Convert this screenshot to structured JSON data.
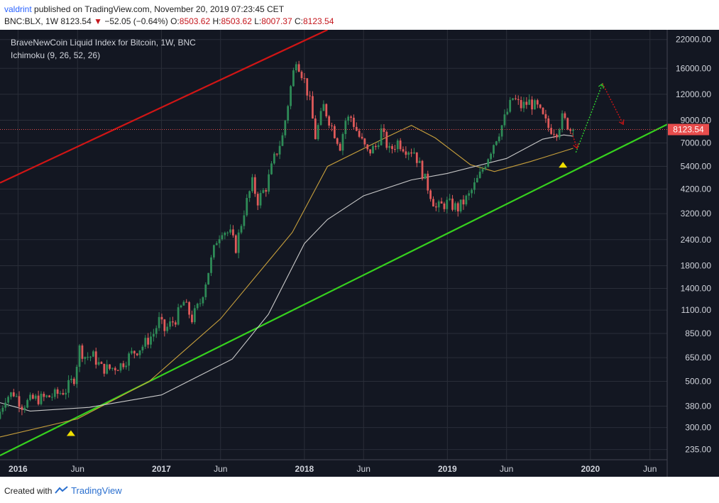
{
  "header": {
    "author": "valdrint",
    "published_text": " published on TradingView.com, November 20, 2019 07:23:45 CET",
    "symbol": "BNC:BLX, 1W",
    "last": "8123.54",
    "arrow": "▼",
    "change": "−52.05 (−0.64%)",
    "open_label": "O:",
    "open": "8503.62",
    "high_label": "H:",
    "high": "8503.62",
    "low_label": "L:",
    "low": "8007.37",
    "close_label": "C:",
    "close": "8123.54"
  },
  "legend": {
    "title": "BraveNewCoin Liquid Index for Bitcoin, 1W, BNC",
    "indicator": "Ichimoku (9, 26, 52, 26)"
  },
  "footer": {
    "created_with": "Created with",
    "brand": "TradingView"
  },
  "colors": {
    "background": "#131722",
    "grid": "#2a2e39",
    "bull": "#2e8b57",
    "bear": "#e05a5a",
    "red_line": "#d01515",
    "green_line": "#36d11e",
    "ma_yellow": "#c8a03c",
    "ma_white": "#c9c9c9",
    "price_label_bg": "#e74c4c",
    "marker": "#f0e000"
  },
  "chart_data": {
    "type": "candlestick",
    "scale": "log",
    "ylim": [
      210,
      24500
    ],
    "xlim": [
      "2015-11-16",
      "2020-07-15"
    ],
    "y_ticks": [
      "22000.00",
      "16000.00",
      "12000.00",
      "9000.00",
      "7000.00",
      "5400.00",
      "4200.00",
      "3200.00",
      "2400.00",
      "1800.00",
      "1400.00",
      "1100.00",
      "850.00",
      "650.00",
      "500.00",
      "380.00",
      "300.00",
      "235.00"
    ],
    "x_ticks": [
      {
        "label": "2016",
        "date": "2016-01-01"
      },
      {
        "label": "Jun",
        "date": "2016-06-01"
      },
      {
        "label": "2017",
        "date": "2017-01-01"
      },
      {
        "label": "Jun",
        "date": "2017-06-01"
      },
      {
        "label": "2018",
        "date": "2018-01-01"
      },
      {
        "label": "Jun",
        "date": "2018-06-01"
      },
      {
        "label": "2019",
        "date": "2019-01-01"
      },
      {
        "label": "Jun",
        "date": "2019-06-01"
      },
      {
        "label": "2020",
        "date": "2020-01-01"
      },
      {
        "label": "Jun",
        "date": "2020-06-01"
      }
    ],
    "price_path": [
      [
        "2015-11-16",
        330
      ],
      [
        "2015-12-07",
        420
      ],
      [
        "2015-12-28",
        440
      ],
      [
        "2016-01-18",
        385
      ],
      [
        "2016-02-15",
        410
      ],
      [
        "2016-03-14",
        415
      ],
      [
        "2016-04-11",
        430
      ],
      [
        "2016-05-09",
        455
      ],
      [
        "2016-05-30",
        520
      ],
      [
        "2016-06-13",
        720
      ],
      [
        "2016-06-27",
        660
      ],
      [
        "2016-07-18",
        660
      ],
      [
        "2016-08-08",
        580
      ],
      [
        "2016-08-29",
        575
      ],
      [
        "2016-09-26",
        600
      ],
      [
        "2016-10-24",
        680
      ],
      [
        "2016-11-21",
        740
      ],
      [
        "2016-12-19",
        850
      ],
      [
        "2017-01-02",
        980
      ],
      [
        "2017-01-16",
        880
      ],
      [
        "2017-02-13",
        1000
      ],
      [
        "2017-03-06",
        1200
      ],
      [
        "2017-03-27",
        1000
      ],
      [
        "2017-04-17",
        1200
      ],
      [
        "2017-05-08",
        1700
      ],
      [
        "2017-05-29",
        2400
      ],
      [
        "2017-06-12",
        2700
      ],
      [
        "2017-07-03",
        2550
      ],
      [
        "2017-07-17",
        2200
      ],
      [
        "2017-08-07",
        3300
      ],
      [
        "2017-08-28",
        4500
      ],
      [
        "2017-09-11",
        3700
      ],
      [
        "2017-10-02",
        4300
      ],
      [
        "2017-10-23",
        5900
      ],
      [
        "2017-11-13",
        7500
      ],
      [
        "2017-12-04",
        13000
      ],
      [
        "2017-12-18",
        18000
      ],
      [
        "2018-01-08",
        14000
      ],
      [
        "2018-01-22",
        11000
      ],
      [
        "2018-02-05",
        7500
      ],
      [
        "2018-02-26",
        10500
      ],
      [
        "2018-03-19",
        8400
      ],
      [
        "2018-04-09",
        6800
      ],
      [
        "2018-04-23",
        9000
      ],
      [
        "2018-05-07",
        9300
      ],
      [
        "2018-05-28",
        7500
      ],
      [
        "2018-06-18",
        6300
      ],
      [
        "2018-07-09",
        6700
      ],
      [
        "2018-07-23",
        8000
      ],
      [
        "2018-08-13",
        6400
      ],
      [
        "2018-09-03",
        7100
      ],
      [
        "2018-09-24",
        6600
      ],
      [
        "2018-10-15",
        6400
      ],
      [
        "2018-11-19",
        4300
      ],
      [
        "2018-12-10",
        3400
      ],
      [
        "2019-01-07",
        3600
      ],
      [
        "2019-02-04",
        3400
      ],
      [
        "2019-03-04",
        3900
      ],
      [
        "2019-04-01",
        4900
      ],
      [
        "2019-05-06",
        7000
      ],
      [
        "2019-05-27",
        8500
      ],
      [
        "2019-06-24",
        11500
      ],
      [
        "2019-07-15",
        10500
      ],
      [
        "2019-08-05",
        11000
      ],
      [
        "2019-08-26",
        10300
      ],
      [
        "2019-09-23",
        8300
      ],
      [
        "2019-10-14",
        8000
      ],
      [
        "2019-10-28",
        9200
      ],
      [
        "2019-11-11",
        8600
      ],
      [
        "2019-11-18",
        8123.54
      ]
    ],
    "series": [
      {
        "type": "line",
        "color": "#c8a03c",
        "values": [
          [
            "2015-11-16",
            270
          ],
          [
            "2016-06-01",
            330
          ],
          [
            "2016-12-01",
            500
          ],
          [
            "2017-06-01",
            1000
          ],
          [
            "2017-12-01",
            2600
          ],
          [
            "2018-03-01",
            5400
          ],
          [
            "2018-08-01",
            7500
          ],
          [
            "2018-10-01",
            8500
          ],
          [
            "2018-12-01",
            7400
          ],
          [
            "2019-03-01",
            5500
          ],
          [
            "2019-05-01",
            5100
          ],
          [
            "2019-08-01",
            5700
          ],
          [
            "2019-11-18",
            6600
          ]
        ]
      },
      {
        "type": "line",
        "color": "#c9c9c9",
        "values": [
          [
            "2015-11-16",
            395
          ],
          [
            "2016-02-01",
            360
          ],
          [
            "2016-07-01",
            375
          ],
          [
            "2017-01-01",
            430
          ],
          [
            "2017-07-01",
            640
          ],
          [
            "2017-10-01",
            1050
          ],
          [
            "2018-01-01",
            2300
          ],
          [
            "2018-03-01",
            3000
          ],
          [
            "2018-06-01",
            3900
          ],
          [
            "2018-10-01",
            4650
          ],
          [
            "2019-01-01",
            5000
          ],
          [
            "2019-06-01",
            5900
          ],
          [
            "2019-09-01",
            7300
          ],
          [
            "2019-10-25",
            7650
          ],
          [
            "2019-11-18",
            7550
          ]
        ]
      }
    ],
    "trendlines": [
      {
        "color": "#d01515",
        "from": [
          "2015-11-16",
          4500
        ],
        "to": [
          "2018-03-01",
          24500
        ]
      },
      {
        "color": "#36d11e",
        "from": [
          "2015-11-16",
          220
        ],
        "to": [
          "2020-07-15",
          8600
        ]
      }
    ],
    "projections": [
      {
        "color": "#2ed12e",
        "from": [
          "2019-11-25",
          6300
        ],
        "to": [
          "2020-02-01",
          13500
        ]
      },
      {
        "color": "#d01515",
        "from": [
          "2020-02-01",
          13500
        ],
        "to": [
          "2020-03-25",
          8600
        ]
      },
      {
        "color": "#d01515",
        "from": [
          "2019-11-15",
          7800
        ],
        "to": [
          "2019-11-28",
          6600
        ]
      }
    ],
    "markers": [
      {
        "date": "2016-05-15",
        "price": 282
      },
      {
        "date": "2019-10-23",
        "price": 5500
      }
    ],
    "last_price_label": "8123.54",
    "last_price": 8123.54
  }
}
